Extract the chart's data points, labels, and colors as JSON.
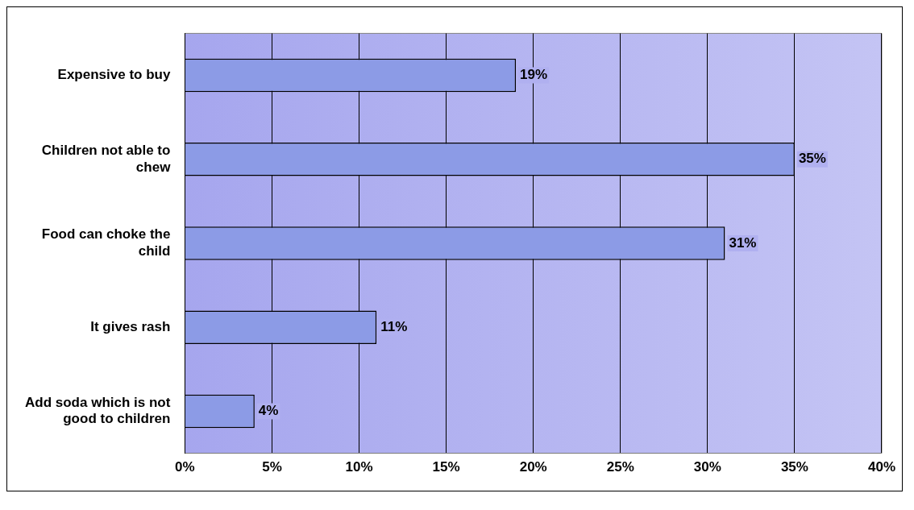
{
  "chart_data": {
    "type": "bar",
    "orientation": "horizontal",
    "categories": [
      "Expensive to buy",
      "Children not able to chew",
      "Food can choke the child",
      "It gives rash",
      "Add soda which is not good to children"
    ],
    "values": [
      19,
      35,
      31,
      11,
      4
    ],
    "value_labels": [
      "19%",
      "35%",
      "31%",
      "11%",
      "4%"
    ],
    "color": "#8c9be6",
    "xlim": [
      0,
      40
    ],
    "xticks": [
      {
        "value": 0,
        "label": "0%"
      },
      {
        "value": 5,
        "label": "5%"
      },
      {
        "value": 10,
        "label": "10%"
      },
      {
        "value": 15,
        "label": "15%"
      },
      {
        "value": 20,
        "label": "20%"
      },
      {
        "value": 25,
        "label": "25%"
      },
      {
        "value": 30,
        "label": "30%"
      },
      {
        "value": 35,
        "label": "35%"
      },
      {
        "value": 40,
        "label": "40%"
      }
    ],
    "grid": "x",
    "legend": false
  }
}
